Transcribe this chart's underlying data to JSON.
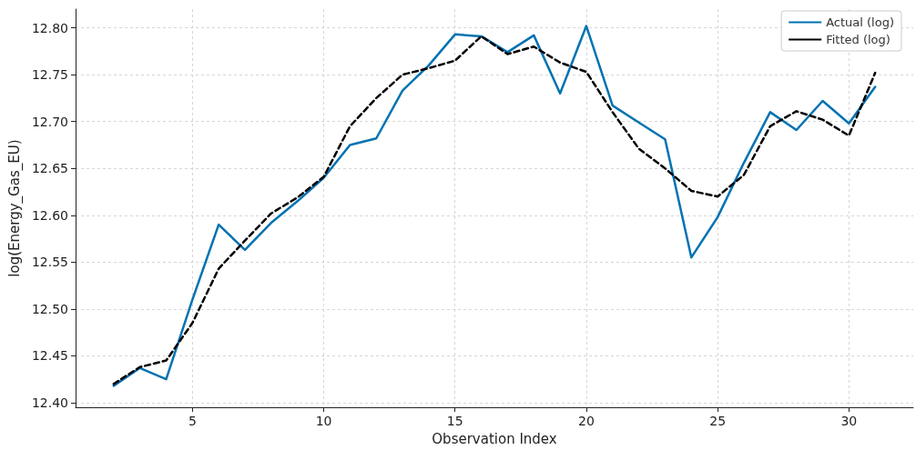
{
  "chart_data": {
    "type": "line",
    "xlabel": "Observation Index",
    "ylabel": "log(Energy_Gas_EU)",
    "x": [
      2,
      3,
      4,
      5,
      6,
      7,
      8,
      9,
      10,
      11,
      12,
      13,
      14,
      15,
      16,
      17,
      18,
      19,
      20,
      21,
      22,
      23,
      24,
      25,
      26,
      27,
      28,
      29,
      30,
      31
    ],
    "series": [
      {
        "name": "Actual (log)",
        "color": "#0072b2",
        "line_style": "solid",
        "values": [
          12.418,
          12.437,
          12.425,
          12.51,
          12.59,
          12.563,
          12.592,
          12.615,
          12.64,
          12.675,
          12.682,
          12.733,
          12.76,
          12.793,
          12.791,
          12.774,
          12.792,
          12.73,
          12.802,
          12.717,
          12.699,
          12.681,
          12.555,
          12.598,
          12.656,
          12.71,
          12.691,
          12.722,
          12.698,
          12.737
        ]
      },
      {
        "name": "Fitted (log)",
        "color": "#000000",
        "line_style": "dashed",
        "values": [
          12.42,
          12.438,
          12.445,
          12.485,
          12.543,
          12.573,
          12.602,
          12.619,
          12.641,
          12.695,
          12.725,
          12.75,
          12.757,
          12.765,
          12.791,
          12.772,
          12.78,
          12.763,
          12.753,
          12.71,
          12.671,
          12.65,
          12.626,
          12.62,
          12.643,
          12.695,
          12.711,
          12.702,
          12.685,
          12.752
        ]
      }
    ],
    "xlim": [
      0.55,
      32.45
    ],
    "xticks": [
      5,
      10,
      15,
      20,
      25,
      30
    ],
    "ylim": [
      12.395,
      12.82
    ],
    "yticks": [
      {
        "value": 12.4,
        "label": "12.40"
      },
      {
        "value": 12.45,
        "label": "12.45"
      },
      {
        "value": 12.5,
        "label": "12.50"
      },
      {
        "value": 12.55,
        "label": "12.55"
      },
      {
        "value": 12.6,
        "label": "12.60"
      },
      {
        "value": 12.65,
        "label": "12.65"
      },
      {
        "value": 12.7,
        "label": "12.70"
      },
      {
        "value": 12.75,
        "label": "12.75"
      },
      {
        "value": 12.8,
        "label": "12.80"
      }
    ],
    "grid": true,
    "legend": "top right",
    "marker": "none"
  }
}
